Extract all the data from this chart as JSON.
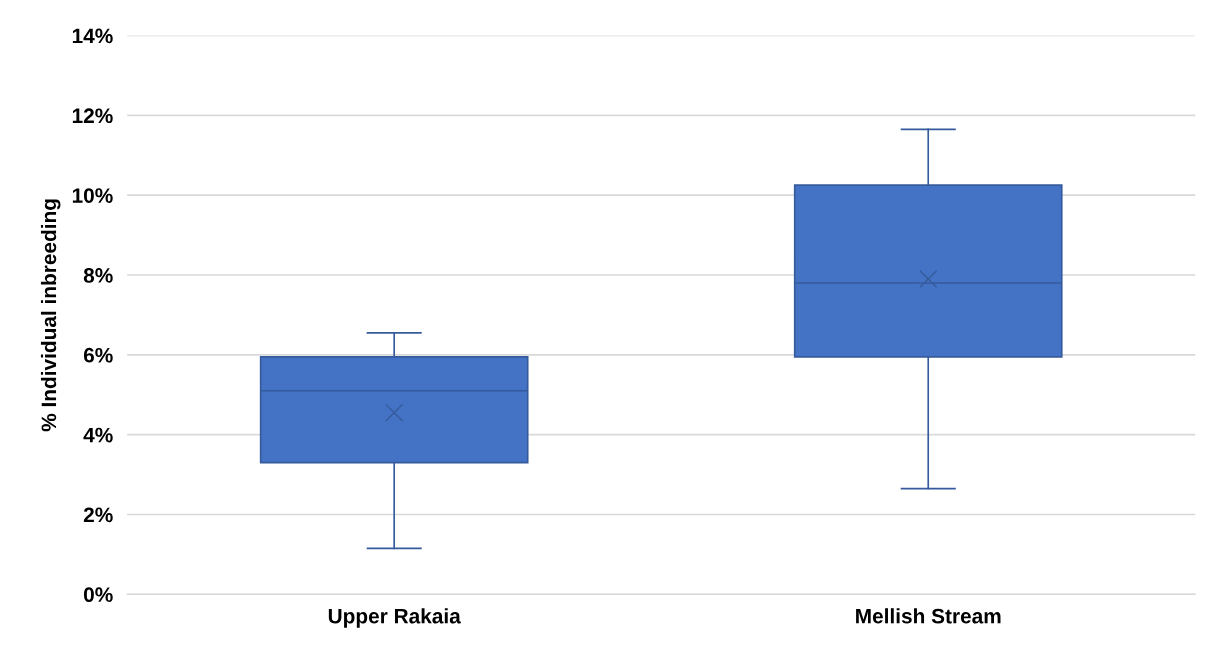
{
  "chart_data": {
    "type": "box",
    "ylabel": "% Individual inbreeding",
    "categories": [
      "Upper Rakaia",
      "Mellish Stream"
    ],
    "series": [
      {
        "color": "#4472c4",
        "boxes": [
          {
            "low": 1.15,
            "q1": 3.3,
            "median": 5.1,
            "q3": 5.95,
            "high": 6.55,
            "mean": 4.55
          },
          {
            "low": 2.65,
            "q1": 5.95,
            "median": 7.8,
            "q3": 10.25,
            "high": 11.65,
            "mean": 7.9
          }
        ]
      }
    ],
    "ylim": [
      0,
      14
    ],
    "yticks": [
      {
        "value": 0,
        "label": "0%"
      },
      {
        "value": 2,
        "label": "2%"
      },
      {
        "value": 4,
        "label": "4%"
      },
      {
        "value": 6,
        "label": "6%"
      },
      {
        "value": 8,
        "label": "8%"
      },
      {
        "value": 10,
        "label": "10%"
      },
      {
        "value": 12,
        "label": "12%"
      },
      {
        "value": 14,
        "label": "14%"
      }
    ],
    "grid": "y",
    "marker": "cross"
  }
}
